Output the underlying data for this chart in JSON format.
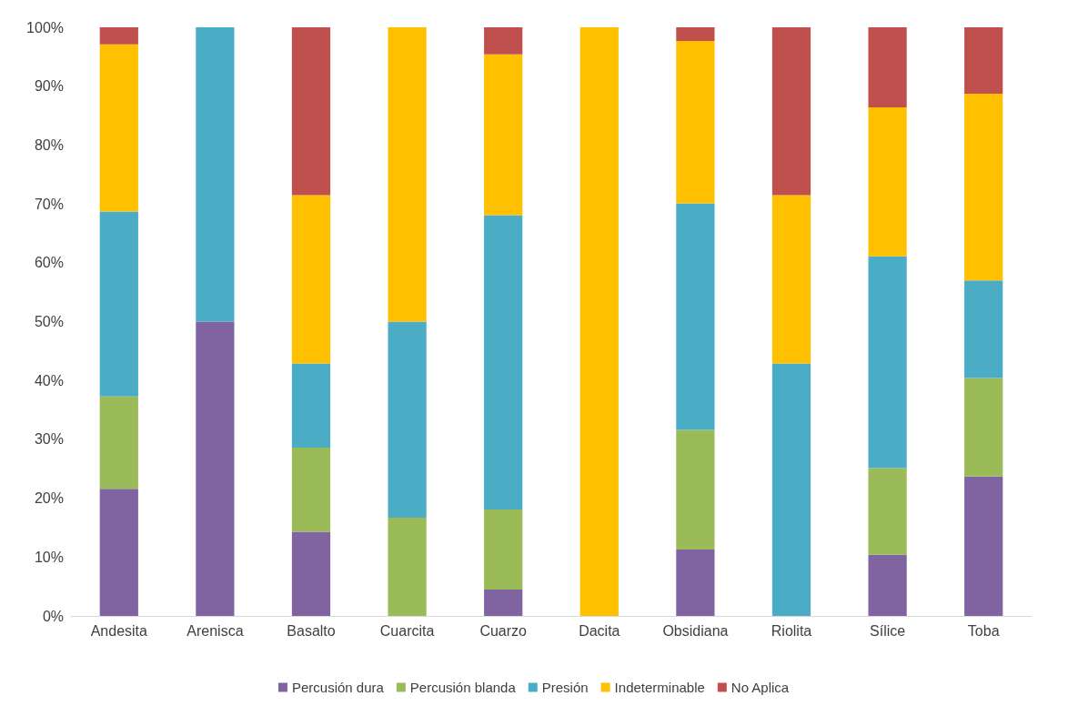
{
  "chart_data": {
    "type": "bar",
    "stacked": true,
    "categories": [
      "Andesita",
      "Arenisca",
      "Basalto",
      "Cuarcita",
      "Cuarzo",
      "Dacita",
      "Obsidiana",
      "Riolita",
      "Sílice",
      "Toba"
    ],
    "series": [
      {
        "name": "Percusión dura",
        "color": "#8064a2",
        "values": [
          21.6,
          50,
          14.3,
          0,
          4.5,
          0,
          11.3,
          0,
          10.4,
          23.7
        ]
      },
      {
        "name": "Percusión blanda",
        "color": "#9bbb59",
        "values": [
          15.7,
          0,
          14.3,
          16.7,
          13.6,
          0,
          20.3,
          0,
          14.7,
          16.7
        ]
      },
      {
        "name": "Presión",
        "color": "#4bacc6",
        "values": [
          31.4,
          50,
          14.3,
          33.3,
          50,
          0,
          38.5,
          42.9,
          36.0,
          16.6
        ]
      },
      {
        "name": "Indeterminable",
        "color": "#ffc000",
        "values": [
          28.4,
          0,
          28.6,
          50,
          27.3,
          100,
          27.6,
          28.6,
          25.3,
          31.7
        ]
      },
      {
        "name": "No Aplica",
        "color": "#c0504d",
        "values": [
          2.9,
          0,
          28.5,
          0,
          4.6,
          0,
          2.3,
          28.5,
          13.6,
          11.3
        ]
      }
    ],
    "ylim": [
      0,
      100
    ],
    "yticks": [
      {
        "value": 0,
        "label": "0%"
      },
      {
        "value": 10,
        "label": "10%"
      },
      {
        "value": 20,
        "label": "20%"
      },
      {
        "value": 30,
        "label": "30%"
      },
      {
        "value": 40,
        "label": "40%"
      },
      {
        "value": 50,
        "label": "50%"
      },
      {
        "value": 60,
        "label": "60%"
      },
      {
        "value": 70,
        "label": "70%"
      },
      {
        "value": 80,
        "label": "80%"
      },
      {
        "value": 90,
        "label": "90%"
      },
      {
        "value": 100,
        "label": "100%"
      }
    ],
    "grid": false,
    "legend": "bottom"
  }
}
